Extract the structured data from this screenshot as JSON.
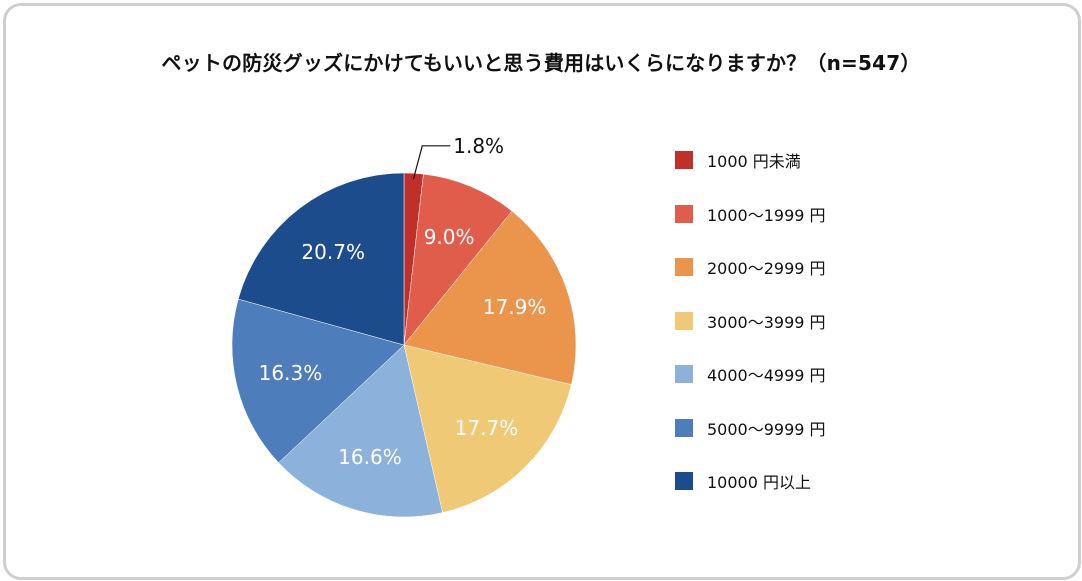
{
  "chart_data": {
    "type": "pie",
    "title": "ペットの防災グッズにかけてもいいと思う費用はいくらになりますか？（n=547）",
    "unit": "%",
    "start_angle": "12 o'clock",
    "direction": "clockwise",
    "legend_position": "right",
    "slices": [
      {
        "label": "1000 円未満",
        "value": 1.8,
        "display": "1.8%",
        "color": "#c0302b",
        "label_outside": true
      },
      {
        "label": "1000〜1999 円",
        "value": 9.0,
        "display": "9.0%",
        "color": "#e05c4b"
      },
      {
        "label": "2000〜2999 円",
        "value": 17.9,
        "display": "17.9%",
        "color": "#ea944c"
      },
      {
        "label": "3000〜3999 円",
        "value": 17.7,
        "display": "17.7%",
        "color": "#f0c977"
      },
      {
        "label": "4000〜4999 円",
        "value": 16.6,
        "display": "16.6%",
        "color": "#8cb1da"
      },
      {
        "label": "5000〜9999 円",
        "value": 16.3,
        "display": "16.3%",
        "color": "#4d7dba"
      },
      {
        "label": "10000 円以上",
        "value": 20.7,
        "display": "20.7%",
        "color": "#1d4c8c"
      }
    ]
  }
}
